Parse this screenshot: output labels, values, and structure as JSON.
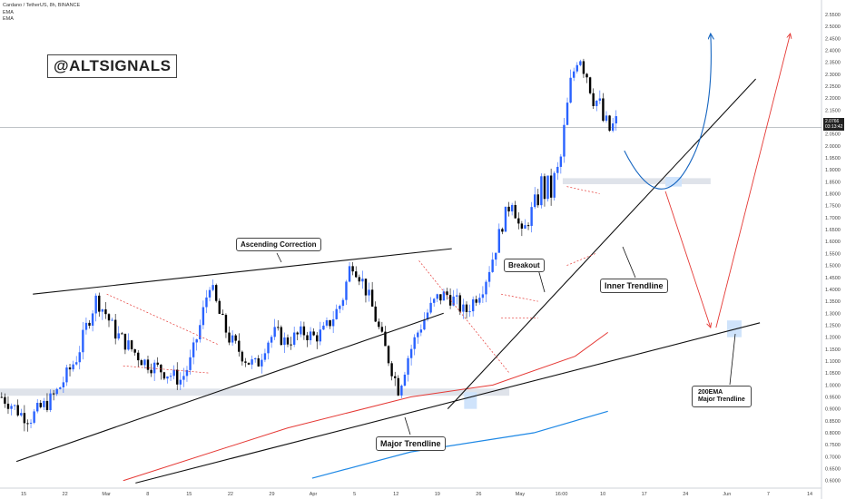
{
  "header": {
    "symbol_line": "Cardano / TetherUS, 8h, BINANCE",
    "indicator_1": "EMA",
    "indicator_2": "EMA"
  },
  "brand_label": "@ALTSIGNALS",
  "price_tag": {
    "price": "2.0766",
    "countdown": "03:13:42"
  },
  "annotations": {
    "ascending_correction": "Ascending Correction",
    "breakout": "Breakout",
    "inner_trendline": "Inner Trendline",
    "major_trendline": "Major Trendline",
    "ema_line1": "200EMA",
    "ema_line2": "Major Trendline"
  },
  "colors": {
    "up": "#2962ff",
    "down": "#000000",
    "ema_short": "#e53935",
    "ema_long": "#1e88e5",
    "projection_blue": "#1565c0",
    "projection_red": "#e53935",
    "zone": "#dfe3ea"
  },
  "chart_data": {
    "type": "candlestick",
    "x_ticks": [
      "15",
      "22",
      "Mar",
      "8",
      "15",
      "22",
      "29",
      "Apr",
      "5",
      "12",
      "19",
      "26",
      "May",
      "16:00",
      "10",
      "17",
      "24",
      "Jun",
      "7",
      "14"
    ],
    "y_ticks": [
      "0.6000",
      "0.6500",
      "0.7000",
      "0.7500",
      "0.8000",
      "0.8500",
      "0.9000",
      "0.9500",
      "1.0000",
      "1.0500",
      "1.1000",
      "1.1500",
      "1.2000",
      "1.2500",
      "1.3000",
      "1.3500",
      "1.4000",
      "1.4500",
      "1.5000",
      "1.5500",
      "1.6000",
      "1.6500",
      "1.7000",
      "1.7500",
      "1.8000",
      "1.8500",
      "1.9000",
      "1.9500",
      "2.0000",
      "2.0500",
      "2.1000",
      "2.1500",
      "2.2000",
      "2.2500",
      "2.3000",
      "2.3500",
      "2.4000",
      "2.4500",
      "2.5000",
      "2.5500"
    ],
    "ylim": [
      0.58,
      2.58
    ],
    "last_price": 2.0766,
    "close_path": [
      0.95,
      0.92,
      0.88,
      0.86,
      0.9,
      0.93,
      0.98,
      1.05,
      1.12,
      1.25,
      1.36,
      1.3,
      1.22,
      1.18,
      1.14,
      1.1,
      1.08,
      1.06,
      1.04,
      1.02,
      1.1,
      1.25,
      1.43,
      1.3,
      1.2,
      1.15,
      1.1,
      1.08,
      1.18,
      1.22,
      1.18,
      1.2,
      1.22,
      1.2,
      1.22,
      1.28,
      1.35,
      1.52,
      1.45,
      1.35,
      1.22,
      1.1,
      0.98,
      1.12,
      1.22,
      1.3,
      1.36,
      1.38,
      1.35,
      1.3,
      1.36,
      1.42,
      1.54,
      1.68,
      1.78,
      1.62,
      1.72,
      1.83,
      1.8,
      1.9,
      2.2,
      2.42,
      2.3,
      2.18,
      2.06,
      2.08
    ],
    "ema_short": [
      [
        0.15,
        0.6
      ],
      [
        0.35,
        0.82
      ],
      [
        0.5,
        0.95
      ],
      [
        0.6,
        1.0
      ],
      [
        0.7,
        1.12
      ],
      [
        0.74,
        1.22
      ]
    ],
    "ema_long": [
      [
        0.38,
        0.61
      ],
      [
        0.5,
        0.72
      ],
      [
        0.65,
        0.8
      ],
      [
        0.74,
        0.89
      ]
    ],
    "zones": [
      {
        "name": "support-zone",
        "ymin": 0.955,
        "ymax": 0.985
      },
      {
        "name": "retest-zone",
        "ymin": 1.84,
        "ymax": 1.865
      }
    ],
    "trendlines": [
      {
        "name": "ascending-correction-upper",
        "from": [
          0.04,
          1.38
        ],
        "to": [
          0.55,
          1.57
        ]
      },
      {
        "name": "ascending-correction-lower",
        "from": [
          0.02,
          0.68
        ],
        "to": [
          0.54,
          1.3
        ]
      },
      {
        "name": "inner-trendline",
        "from": [
          0.545,
          0.9
        ],
        "to": [
          0.92,
          2.28
        ]
      },
      {
        "name": "major-trendline",
        "from": [
          0.165,
          0.59
        ],
        "to": [
          0.925,
          1.26
        ]
      }
    ],
    "projections": [
      {
        "name": "blue-projection",
        "color": "blue",
        "from": [
          0.76,
          1.98
        ],
        "via": [
          0.8,
          1.82
        ],
        "to": [
          0.865,
          2.47
        ]
      },
      {
        "name": "red-projection",
        "color": "red",
        "from": [
          0.81,
          1.81
        ],
        "via": [
          0.865,
          1.24
        ],
        "to": [
          0.962,
          2.47
        ]
      }
    ]
  }
}
